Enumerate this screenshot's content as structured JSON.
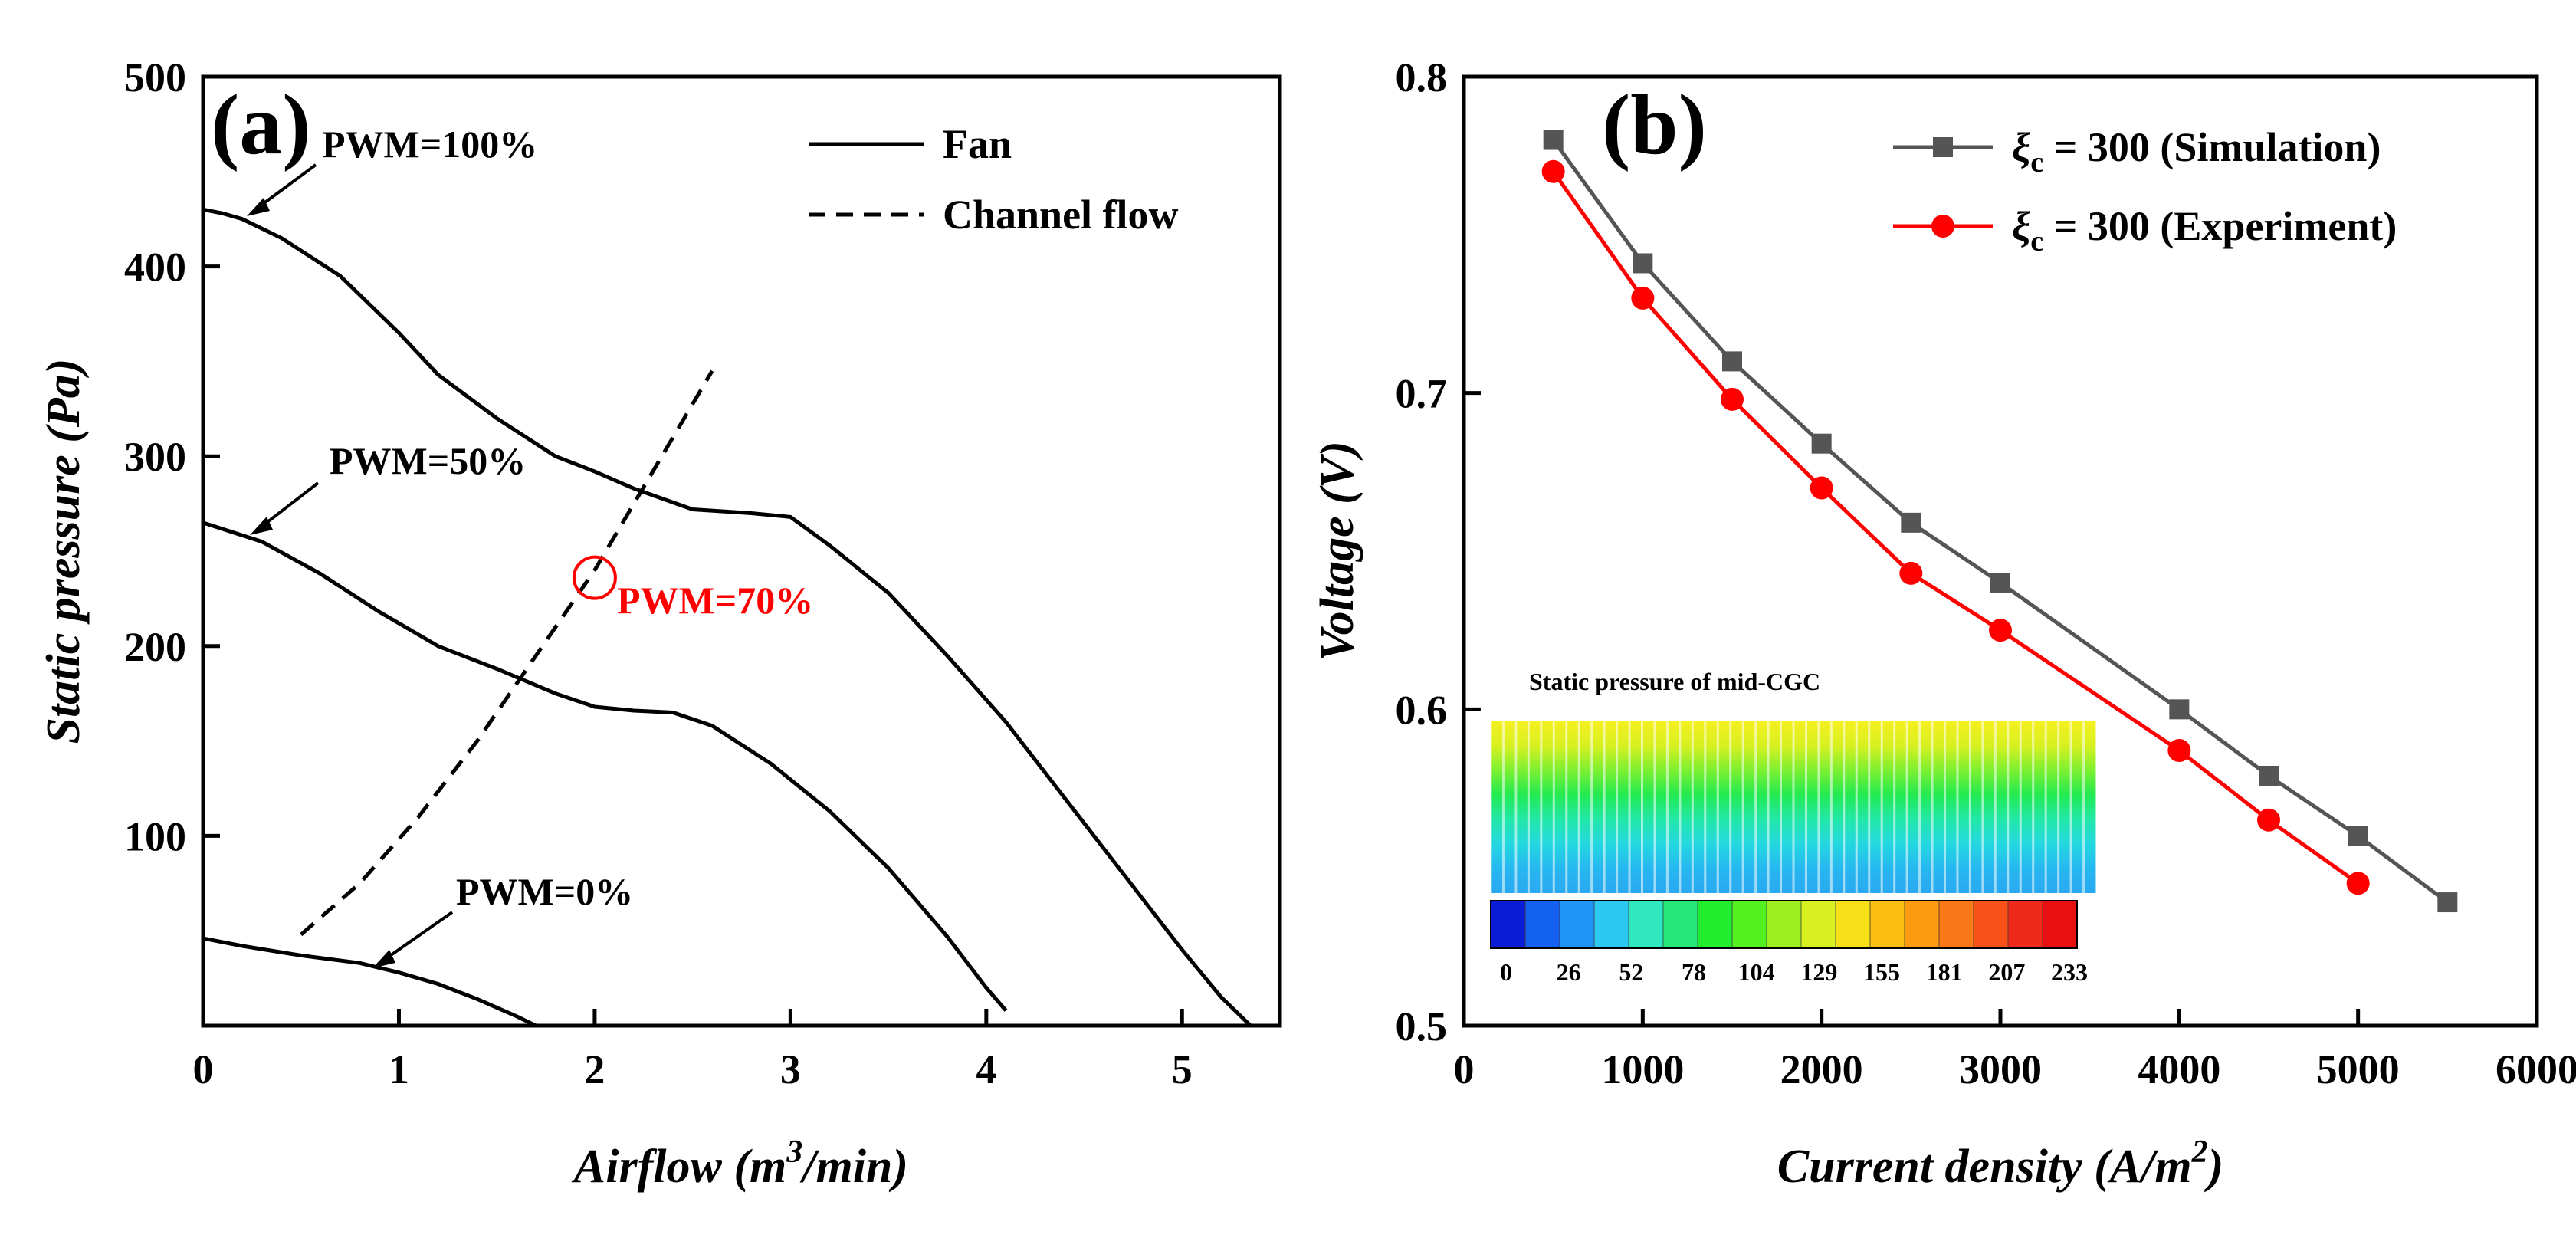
{
  "colors": {
    "black": "#000000",
    "red": "#ff0000",
    "sim": "#555555",
    "exp": "#ff0000"
  },
  "chart_data": [
    {
      "panel": "(a)",
      "type": "line",
      "xlabel": "Airflow (m3/min)",
      "xlabel_parts": {
        "pre": "Airflow (",
        "base": "m",
        "sup": "3",
        "post": "/min)"
      },
      "ylabel": "Static pressure (Pa)",
      "xlim": [
        0,
        5.5
      ],
      "ylim": [
        0,
        500
      ],
      "xticks": [
        0,
        1,
        2,
        3,
        4,
        5
      ],
      "yticks": [
        100,
        200,
        300,
        400,
        500
      ],
      "legend": {
        "position": "top-right",
        "entries": [
          {
            "name": "Fan",
            "style": "solid"
          },
          {
            "name": "Channel flow",
            "style": "dashed"
          }
        ]
      },
      "series": [
        {
          "name": "Fan",
          "label": "PWM=100%",
          "style": "solid",
          "points": [
            [
              0,
              430
            ],
            [
              0.1,
              428
            ],
            [
              0.2,
              425
            ],
            [
              0.4,
              415
            ],
            [
              0.7,
              395
            ],
            [
              1.0,
              365
            ],
            [
              1.2,
              343
            ],
            [
              1.5,
              320
            ],
            [
              1.8,
              300
            ],
            [
              2.0,
              292
            ],
            [
              2.2,
              283
            ],
            [
              2.5,
              272
            ],
            [
              2.8,
              270
            ],
            [
              3.0,
              268
            ],
            [
              3.2,
              253
            ],
            [
              3.5,
              228
            ],
            [
              3.8,
              195
            ],
            [
              4.1,
              160
            ],
            [
              4.4,
              120
            ],
            [
              4.7,
              80
            ],
            [
              5.0,
              40
            ],
            [
              5.2,
              15
            ],
            [
              5.35,
              0
            ]
          ]
        },
        {
          "name": "Fan",
          "label": "PWM=50%",
          "style": "solid",
          "points": [
            [
              0,
              265
            ],
            [
              0.3,
              255
            ],
            [
              0.6,
              238
            ],
            [
              0.9,
              218
            ],
            [
              1.2,
              200
            ],
            [
              1.5,
              188
            ],
            [
              1.8,
              175
            ],
            [
              2.0,
              168
            ],
            [
              2.2,
              166
            ],
            [
              2.4,
              165
            ],
            [
              2.6,
              158
            ],
            [
              2.9,
              138
            ],
            [
              3.2,
              113
            ],
            [
              3.5,
              83
            ],
            [
              3.8,
              47
            ],
            [
              4.0,
              20
            ],
            [
              4.1,
              8
            ]
          ]
        },
        {
          "name": "Fan",
          "label": "PWM=0%",
          "style": "solid",
          "points": [
            [
              0,
              46
            ],
            [
              0.2,
              42
            ],
            [
              0.5,
              37
            ],
            [
              0.8,
              33
            ],
            [
              1.0,
              28
            ],
            [
              1.2,
              22
            ],
            [
              1.4,
              14
            ],
            [
              1.6,
              5
            ],
            [
              1.7,
              0
            ]
          ]
        },
        {
          "name": "Channel flow",
          "style": "dashed",
          "points": [
            [
              0.5,
              48
            ],
            [
              0.8,
              75
            ],
            [
              1.1,
              110
            ],
            [
              1.4,
              150
            ],
            [
              1.7,
              195
            ],
            [
              2.0,
              240
            ],
            [
              2.2,
              275
            ],
            [
              2.4,
              310
            ],
            [
              2.6,
              345
            ]
          ]
        }
      ],
      "annotations": [
        {
          "text": "PWM=100%",
          "color": "#000000"
        },
        {
          "text": "PWM=50%",
          "color": "#000000"
        },
        {
          "text": "PWM=0%",
          "color": "#000000"
        },
        {
          "text": "PWM=70%",
          "color": "#ff0000",
          "marker_x": 2.0,
          "marker_y": 236
        }
      ]
    },
    {
      "panel": "(b)",
      "type": "line",
      "xlabel": "Current density (A/m2)",
      "xlabel_parts": {
        "pre": "Current density (",
        "base": "A/m",
        "sup": "2",
        "post": ")"
      },
      "ylabel": "Voltage (V)",
      "xlim": [
        0,
        6000
      ],
      "ylim": [
        0.5,
        0.8
      ],
      "xticks": [
        0,
        1000,
        2000,
        3000,
        4000,
        5000,
        6000
      ],
      "yticks": [
        0.5,
        0.6,
        0.7,
        0.8
      ],
      "legend": {
        "position": "top-right"
      },
      "series": [
        {
          "name": "ξc = 300 (Simulation)",
          "name_parts": {
            "sym": "ξ",
            "sub": "c",
            "rest": " = 300 (Simulation)"
          },
          "marker": "square",
          "color": "#555555",
          "x": [
            500,
            1000,
            1500,
            2000,
            2500,
            3000,
            4000,
            4500,
            5000,
            5500
          ],
          "y": [
            0.78,
            0.741,
            0.71,
            0.684,
            0.659,
            0.64,
            0.6,
            0.579,
            0.56,
            0.539
          ]
        },
        {
          "name": "ξc = 300 (Experiment)",
          "name_parts": {
            "sym": "ξ",
            "sub": "c",
            "rest": " = 300 (Experiment)"
          },
          "marker": "circle",
          "color": "#ff0000",
          "x": [
            500,
            1000,
            1500,
            2000,
            2500,
            3000,
            4000,
            4500,
            5000
          ],
          "y": [
            0.77,
            0.73,
            0.698,
            0.67,
            0.643,
            0.625,
            0.587,
            0.565,
            0.545
          ]
        }
      ],
      "inset": {
        "title": "Static pressure of  mid-CGC",
        "colorbar_ticks": [
          "0",
          "26",
          "52",
          "78",
          "104",
          "129",
          "155",
          "181",
          "207",
          "233"
        ],
        "colormap": [
          "#0a1dd6",
          "#1460f0",
          "#1f95f7",
          "#2bc8f0",
          "#30e8c0",
          "#25e878",
          "#22ee30",
          "#55f020",
          "#9cf020",
          "#d8f020",
          "#f8e018",
          "#fcbe10",
          "#fc9a10",
          "#fb7818",
          "#f85218",
          "#f02a18",
          "#e81010"
        ]
      }
    }
  ]
}
